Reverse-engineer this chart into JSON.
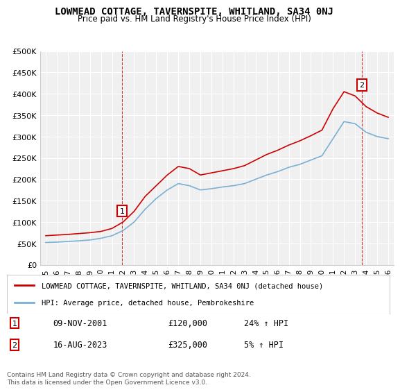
{
  "title": "LOWMEAD COTTAGE, TAVERNSPITE, WHITLAND, SA34 0NJ",
  "subtitle": "Price paid vs. HM Land Registry's House Price Index (HPI)",
  "xlabel": "",
  "ylabel": "",
  "ylim": [
    0,
    500000
  ],
  "yticks": [
    0,
    50000,
    100000,
    150000,
    200000,
    250000,
    300000,
    350000,
    400000,
    450000,
    500000
  ],
  "ytick_labels": [
    "£0",
    "£50K",
    "£100K",
    "£150K",
    "£200K",
    "£250K",
    "£300K",
    "£350K",
    "£400K",
    "£450K",
    "£500K"
  ],
  "background_color": "#ffffff",
  "plot_bg_color": "#f0f0f0",
  "grid_color": "#ffffff",
  "red_line_color": "#cc0000",
  "blue_line_color": "#7ab0d4",
  "vline_color": "#cc0000",
  "marker1_date_idx": 6.9,
  "marker2_date_idx": 28.6,
  "marker1_label": "1",
  "marker2_label": "2",
  "legend_line1": "LOWMEAD COTTAGE, TAVERNSPITE, WHITLAND, SA34 0NJ (detached house)",
  "legend_line2": "HPI: Average price, detached house, Pembrokeshire",
  "table_row1": [
    "1",
    "09-NOV-2001",
    "£120,000",
    "24% ↑ HPI"
  ],
  "table_row2": [
    "2",
    "16-AUG-2023",
    "£325,000",
    "5% ↑ HPI"
  ],
  "footnote": "Contains HM Land Registry data © Crown copyright and database right 2024.\nThis data is licensed under the Open Government Licence v3.0.",
  "xticklabels": [
    "1995",
    "1996",
    "1997",
    "1998",
    "1999",
    "2000",
    "2001",
    "2002",
    "2003",
    "2004",
    "2005",
    "2006",
    "2007",
    "2008",
    "2009",
    "2010",
    "2011",
    "2012",
    "2013",
    "2014",
    "2015",
    "2016",
    "2017",
    "2018",
    "2019",
    "2020",
    "2021",
    "2022",
    "2023",
    "2024",
    "2025",
    "2026"
  ],
  "hpi_data": [
    52000,
    53000,
    54500,
    56000,
    58000,
    62000,
    68000,
    80000,
    100000,
    130000,
    155000,
    175000,
    190000,
    185000,
    175000,
    178000,
    182000,
    185000,
    190000,
    200000,
    210000,
    218000,
    228000,
    235000,
    245000,
    255000,
    295000,
    335000,
    330000,
    310000,
    300000,
    295000
  ],
  "red_data": [
    68000,
    69500,
    71000,
    73000,
    75000,
    78000,
    85000,
    100000,
    125000,
    160000,
    185000,
    210000,
    230000,
    225000,
    210000,
    215000,
    220000,
    225000,
    232000,
    245000,
    258000,
    268000,
    280000,
    290000,
    302000,
    315000,
    365000,
    405000,
    395000,
    370000,
    355000,
    345000
  ]
}
